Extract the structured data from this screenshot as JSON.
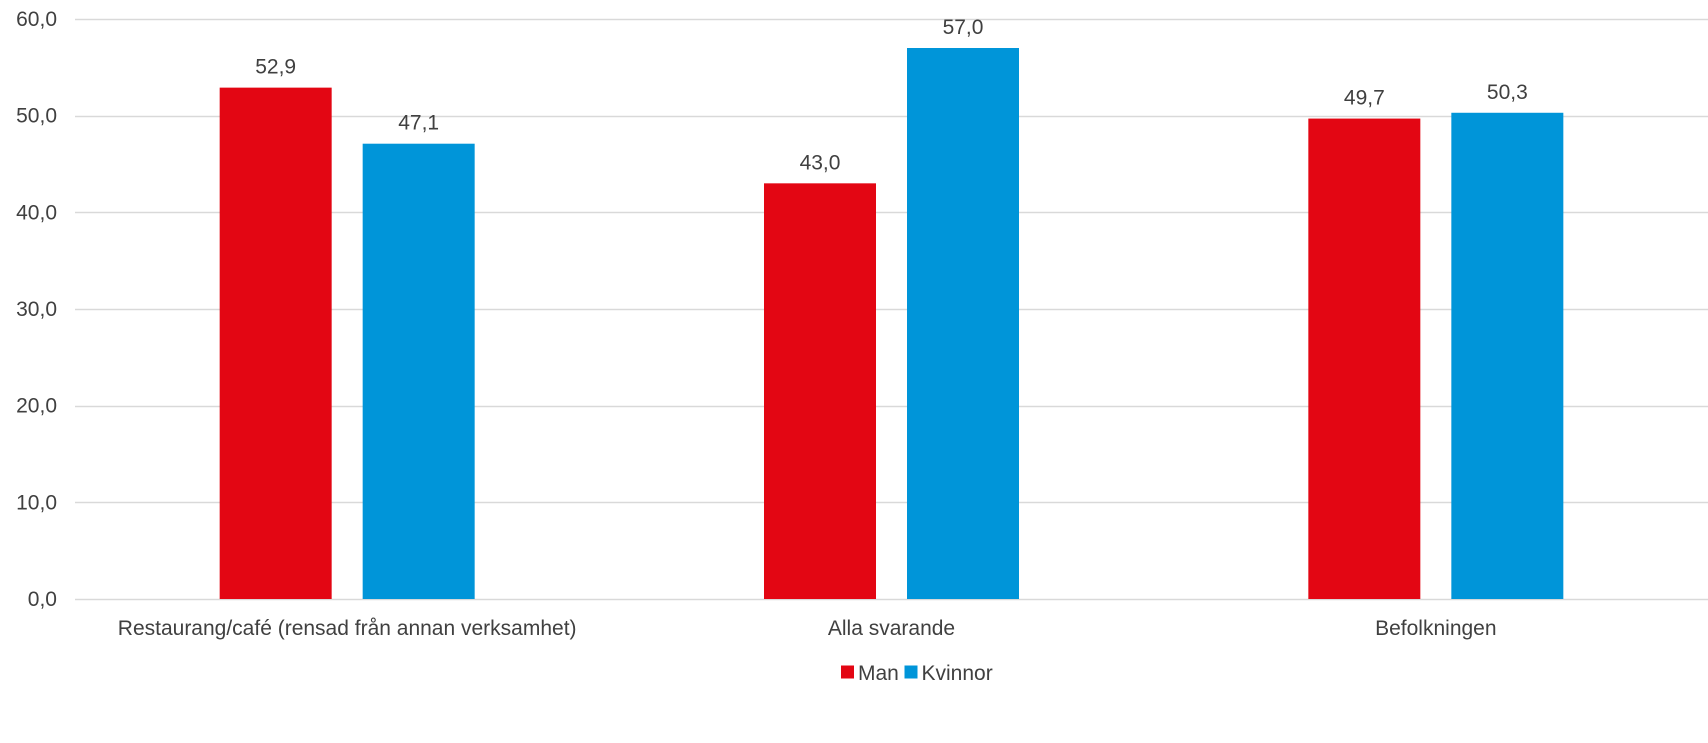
{
  "chart_data": {
    "type": "bar",
    "categories": [
      "Restaurang/café (rensad från annan verksamhet)",
      "Alla svarande",
      "Befolkningen"
    ],
    "series": [
      {
        "name": "Man",
        "values": [
          52.9,
          43.0,
          49.7
        ],
        "labels": [
          "52,9",
          "43,0",
          "49,7"
        ],
        "color": "#e30613"
      },
      {
        "name": "Kvinnor",
        "values": [
          47.1,
          57.0,
          50.3
        ],
        "labels": [
          "47,1",
          "57,0",
          "50,3"
        ],
        "color": "#0095d9"
      }
    ],
    "ylim": [
      0,
      60
    ],
    "yticks": [
      0,
      10,
      20,
      30,
      40,
      50,
      60
    ],
    "ytick_labels": [
      "0,0",
      "10,0",
      "20,0",
      "30,0",
      "40,0",
      "50,0",
      "60,0"
    ],
    "grid": true,
    "legend_position": "bottom",
    "title": "",
    "xlabel": "",
    "ylabel": "",
    "gridline_color": "#d9d9d9",
    "text_color": "#404040"
  }
}
